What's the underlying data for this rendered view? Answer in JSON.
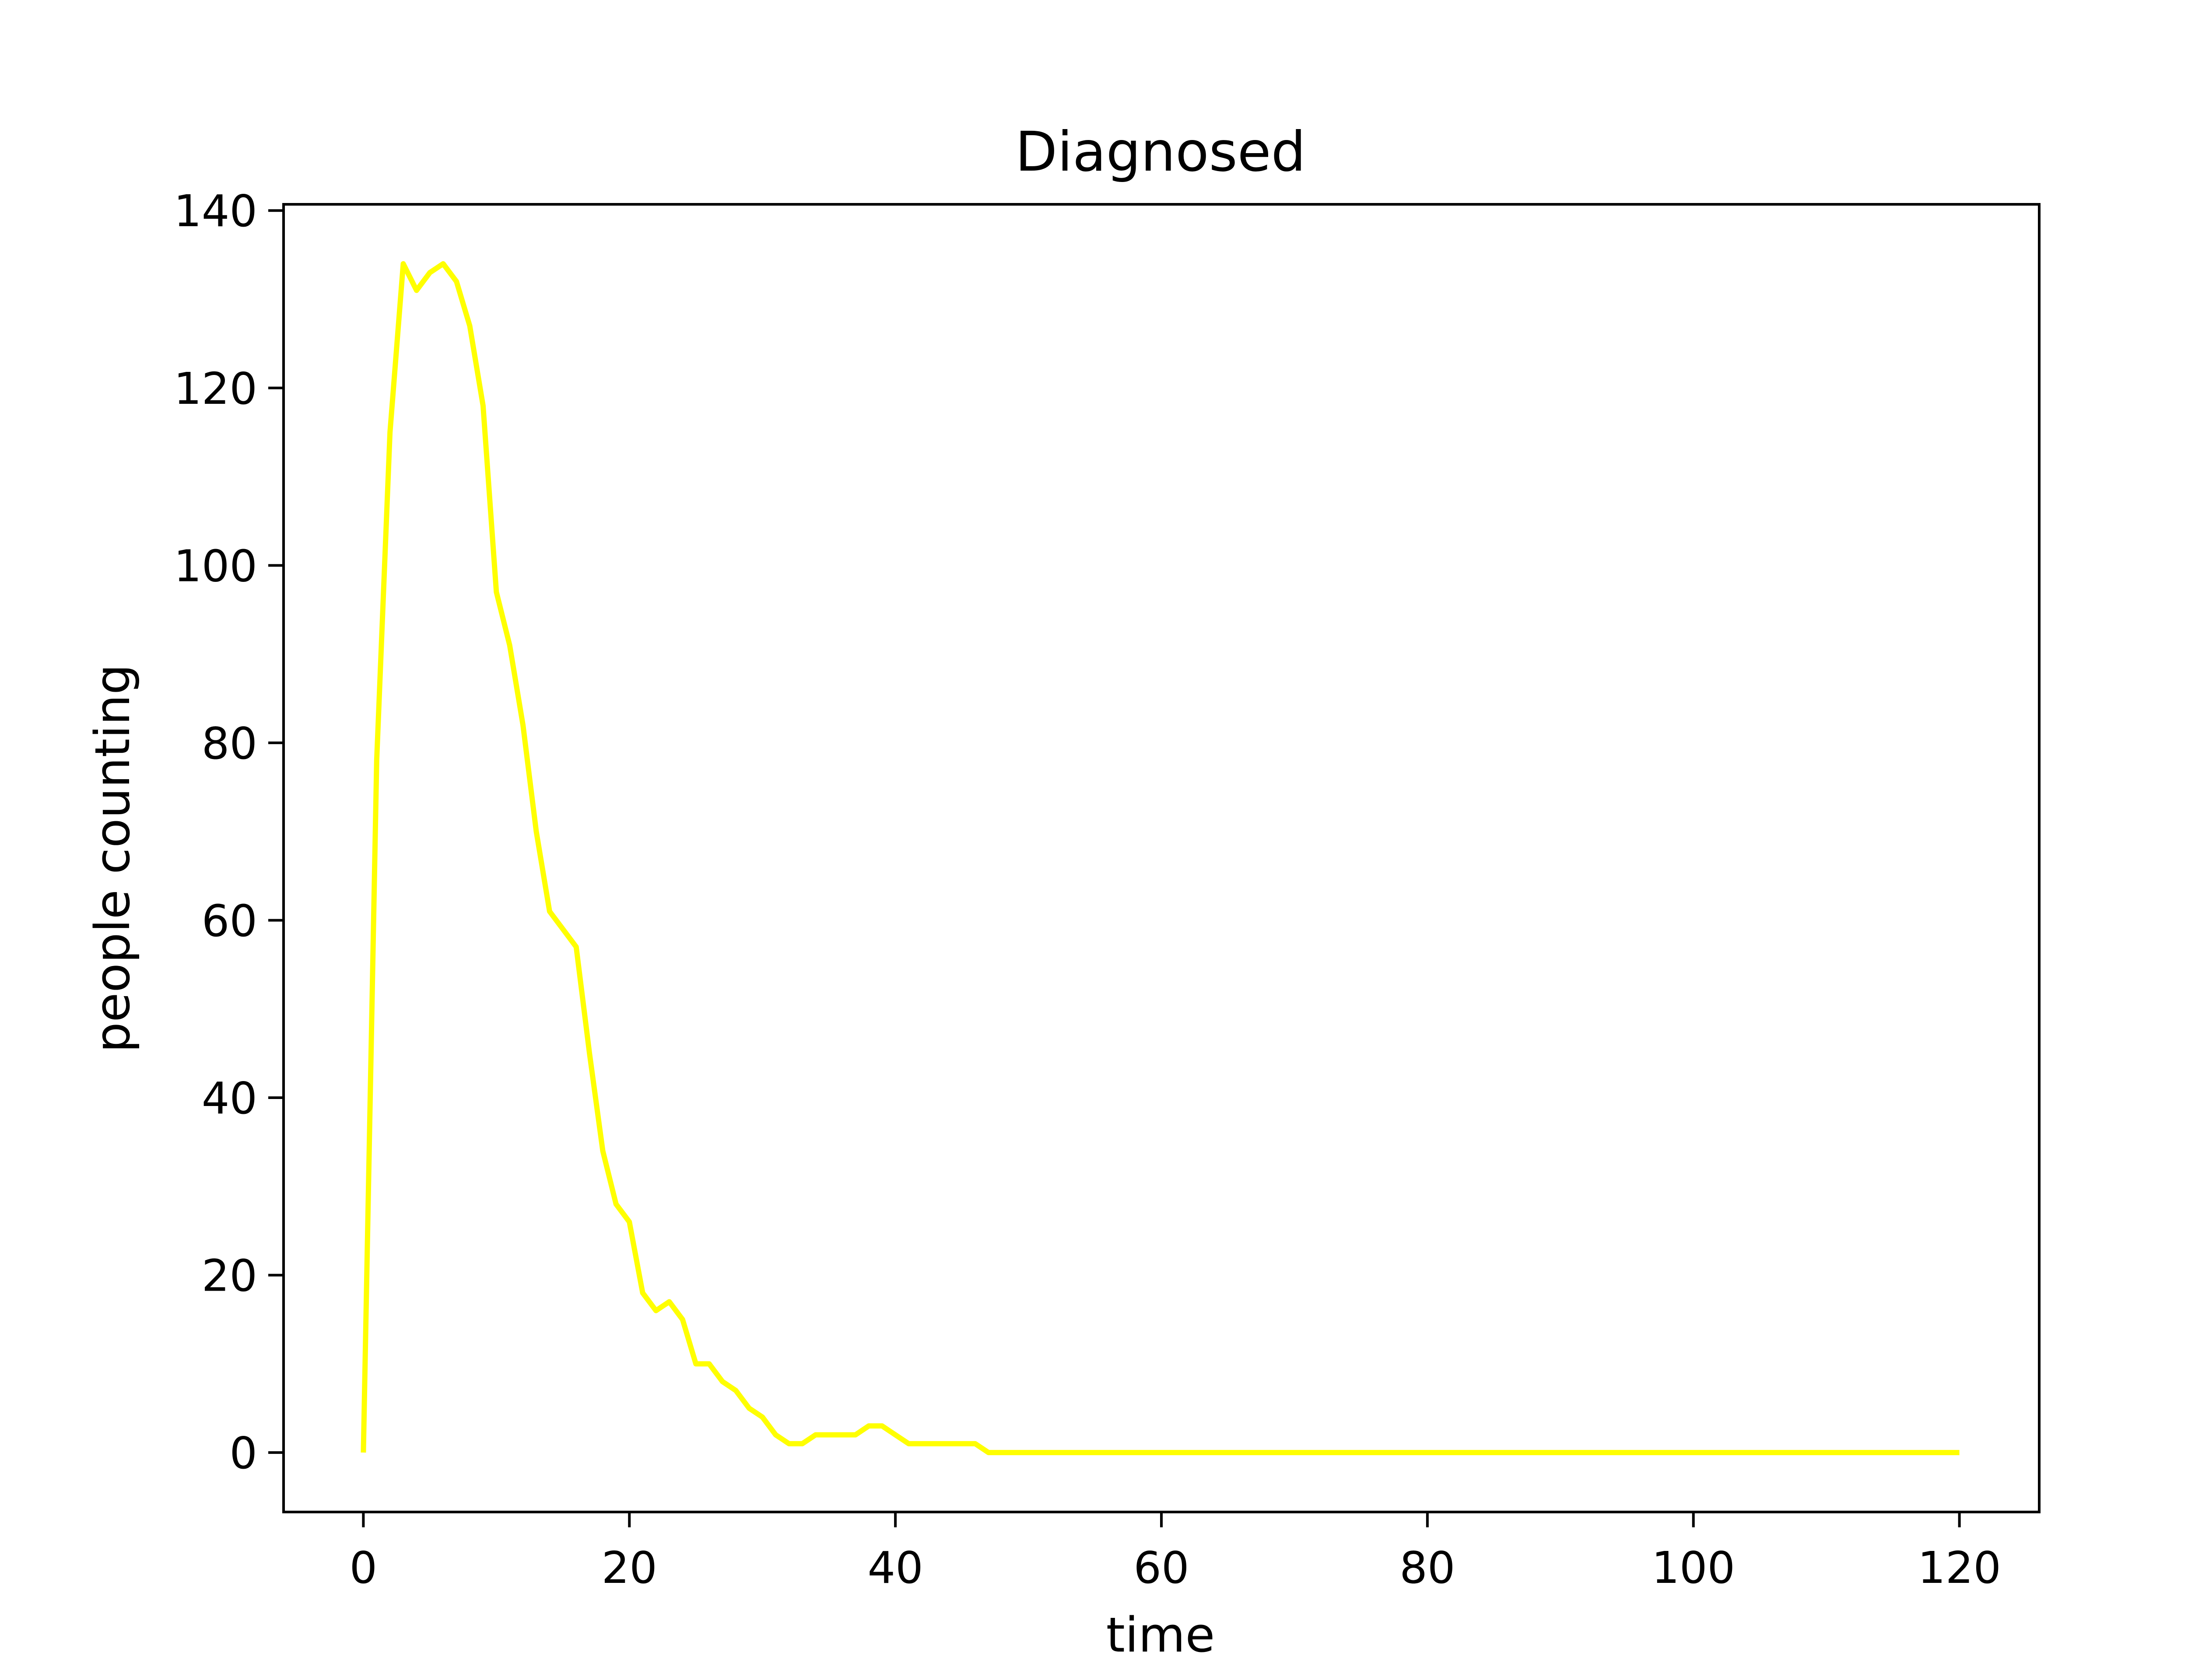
{
  "chart_data": {
    "type": "line",
    "title": "Diagnosed",
    "xlabel": "time",
    "ylabel": "people counting",
    "xlim": [
      -6,
      126
    ],
    "ylim": [
      -6.7,
      140.7
    ],
    "xticks": [
      0,
      20,
      40,
      60,
      80,
      100,
      120
    ],
    "yticks": [
      0,
      20,
      40,
      60,
      80,
      100,
      120,
      140
    ],
    "xtick_labels": [
      "0",
      "20",
      "40",
      "60",
      "80",
      "100",
      "120"
    ],
    "ytick_labels": [
      "0",
      "20",
      "40",
      "60",
      "80",
      "100",
      "120",
      "140"
    ],
    "grid": false,
    "legend": "none",
    "series": [
      {
        "color": "#ffff00",
        "x": [
          0,
          1,
          2,
          3,
          4,
          5,
          6,
          7,
          8,
          9,
          10,
          11,
          12,
          13,
          14,
          15,
          16,
          17,
          18,
          19,
          20,
          21,
          22,
          23,
          24,
          25,
          26,
          27,
          28,
          29,
          30,
          31,
          32,
          33,
          34,
          35,
          36,
          37,
          38,
          39,
          40,
          41,
          42,
          43,
          44,
          45,
          46,
          47,
          48,
          49,
          50,
          51,
          52,
          53,
          54,
          55,
          56,
          57,
          58,
          59,
          60,
          61,
          62,
          63,
          64,
          65,
          66,
          67,
          68,
          69,
          70,
          71,
          72,
          73,
          74,
          75,
          76,
          77,
          78,
          79,
          80,
          81,
          82,
          83,
          84,
          85,
          86,
          87,
          88,
          89,
          90,
          91,
          92,
          93,
          94,
          95,
          96,
          97,
          98,
          99,
          100,
          101,
          102,
          103,
          104,
          105,
          106,
          107,
          108,
          109,
          110,
          111,
          112,
          113,
          114,
          115,
          116,
          117,
          118,
          119,
          120
        ],
        "y": [
          0,
          78,
          115,
          134,
          131,
          133,
          134,
          132,
          127,
          118,
          97,
          91,
          82,
          70,
          61,
          59,
          57,
          45,
          34,
          28,
          26,
          18,
          16,
          17,
          15,
          10,
          10,
          8,
          7,
          5,
          4,
          2,
          1,
          1,
          2,
          2,
          2,
          2,
          3,
          3,
          2,
          1,
          1,
          1,
          1,
          1,
          1,
          0,
          0,
          0,
          0,
          0,
          0,
          0,
          0,
          0,
          0,
          0,
          0,
          0,
          0,
          0,
          0,
          0,
          0,
          0,
          0,
          0,
          0,
          0,
          0,
          0,
          0,
          0,
          0,
          0,
          0,
          0,
          0,
          0,
          0,
          0,
          0,
          0,
          0,
          0,
          0,
          0,
          0,
          0,
          0,
          0,
          0,
          0,
          0,
          0,
          0,
          0,
          0,
          0,
          0,
          0,
          0,
          0,
          0,
          0,
          0,
          0,
          0,
          0,
          0,
          0,
          0,
          0,
          0,
          0,
          0,
          0,
          0,
          0,
          0
        ]
      }
    ]
  }
}
